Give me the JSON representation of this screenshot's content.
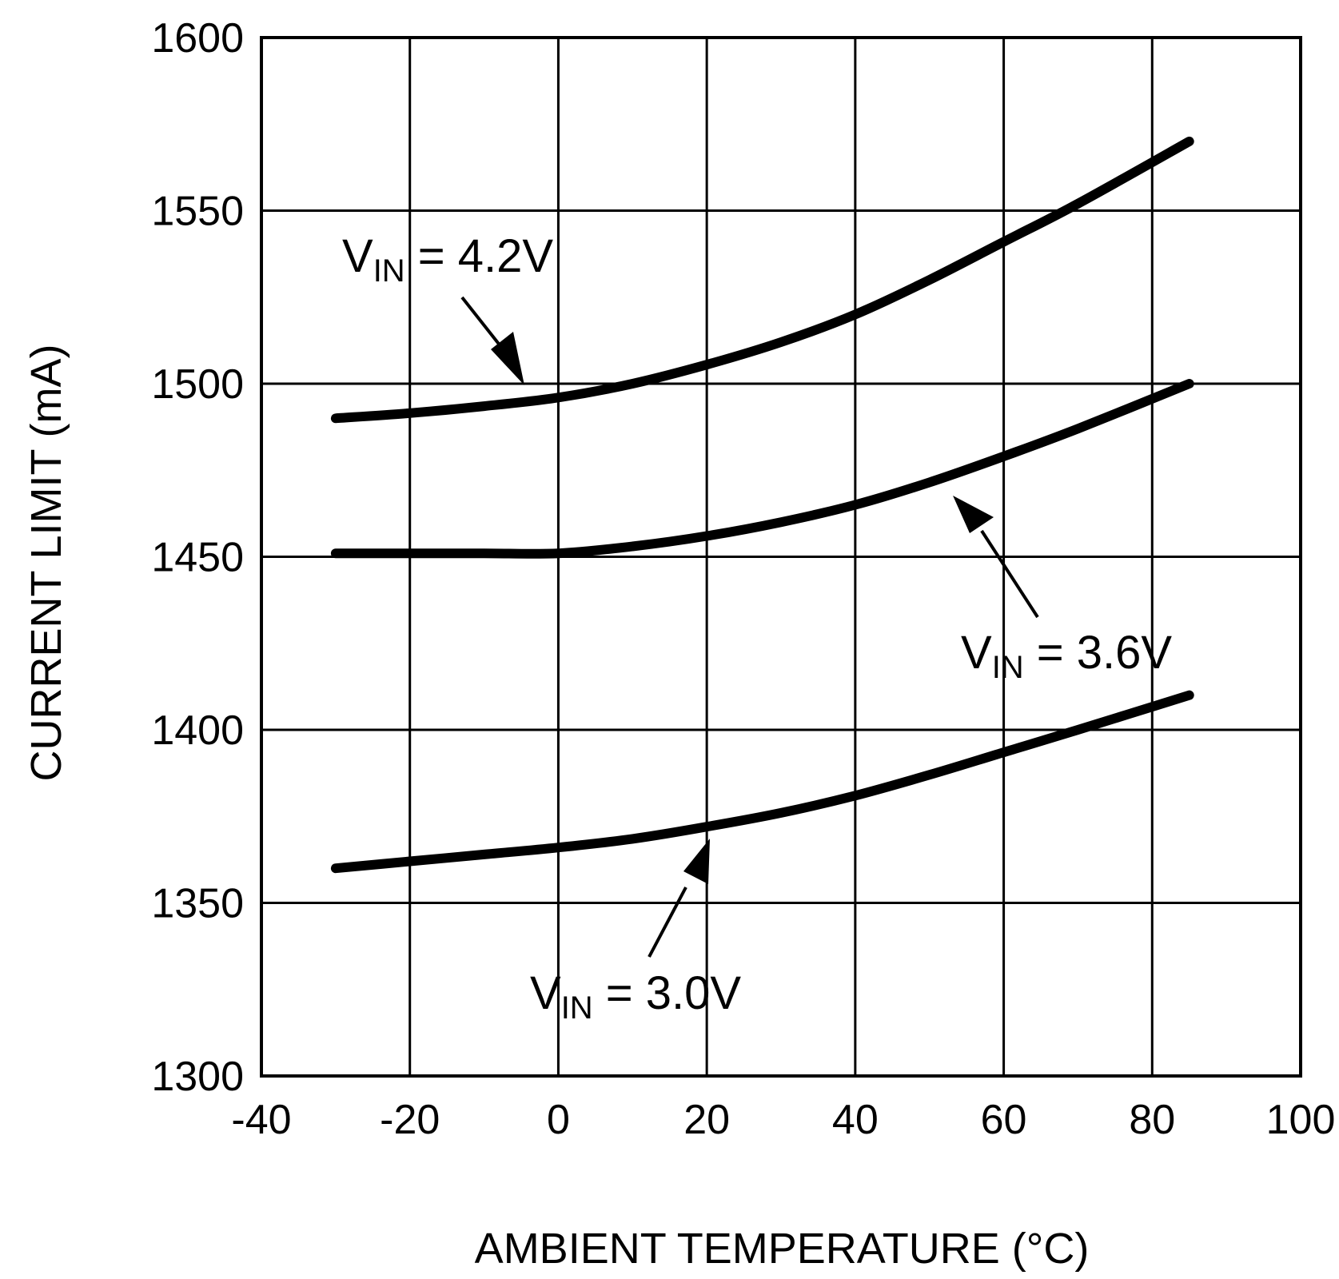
{
  "chart_data": {
    "type": "line",
    "title": "",
    "xlabel": "AMBIENT TEMPERATURE (°C)",
    "ylabel": "CURRENT LIMIT (mA)",
    "xlim": [
      -40,
      100
    ],
    "ylim": [
      1300,
      1600
    ],
    "xticks": [
      -40,
      -20,
      0,
      20,
      40,
      60,
      80,
      100
    ],
    "yticks": [
      1300,
      1350,
      1400,
      1450,
      1500,
      1550,
      1600
    ],
    "grid": true,
    "series": [
      {
        "name": "VIN = 4.2V",
        "x": [
          -30,
          -20,
          -10,
          0,
          10,
          20,
          30,
          40,
          50,
          60,
          70,
          85
        ],
        "y": [
          1490,
          1491.5,
          1493.5,
          1496,
          1500,
          1505.5,
          1512,
          1520,
          1530,
          1541,
          1552,
          1570
        ]
      },
      {
        "name": "VIN = 3.6V",
        "x": [
          -30,
          -20,
          -10,
          0,
          10,
          20,
          30,
          40,
          50,
          60,
          70,
          85
        ],
        "y": [
          1451,
          1451,
          1451,
          1451,
          1453,
          1456,
          1460,
          1465,
          1471.5,
          1479,
          1487,
          1500
        ]
      },
      {
        "name": "VIN = 3.0V",
        "x": [
          -30,
          -20,
          -10,
          0,
          10,
          20,
          30,
          40,
          50,
          60,
          70,
          85
        ],
        "y": [
          1360,
          1362,
          1364,
          1366,
          1368.5,
          1372,
          1376,
          1381,
          1387,
          1393.5,
          1400,
          1410
        ]
      }
    ],
    "annotations": [
      {
        "label": "V",
        "sub": "IN",
        "rest": " = 4.2V",
        "target": [
          -3,
          1496
        ]
      },
      {
        "label": "V",
        "sub": "IN",
        "rest": " = 3.6V",
        "target": [
          53,
          1467
        ]
      },
      {
        "label": "V",
        "sub": "IN",
        "rest": " = 3.0V",
        "target": [
          20,
          1369
        ]
      }
    ]
  }
}
